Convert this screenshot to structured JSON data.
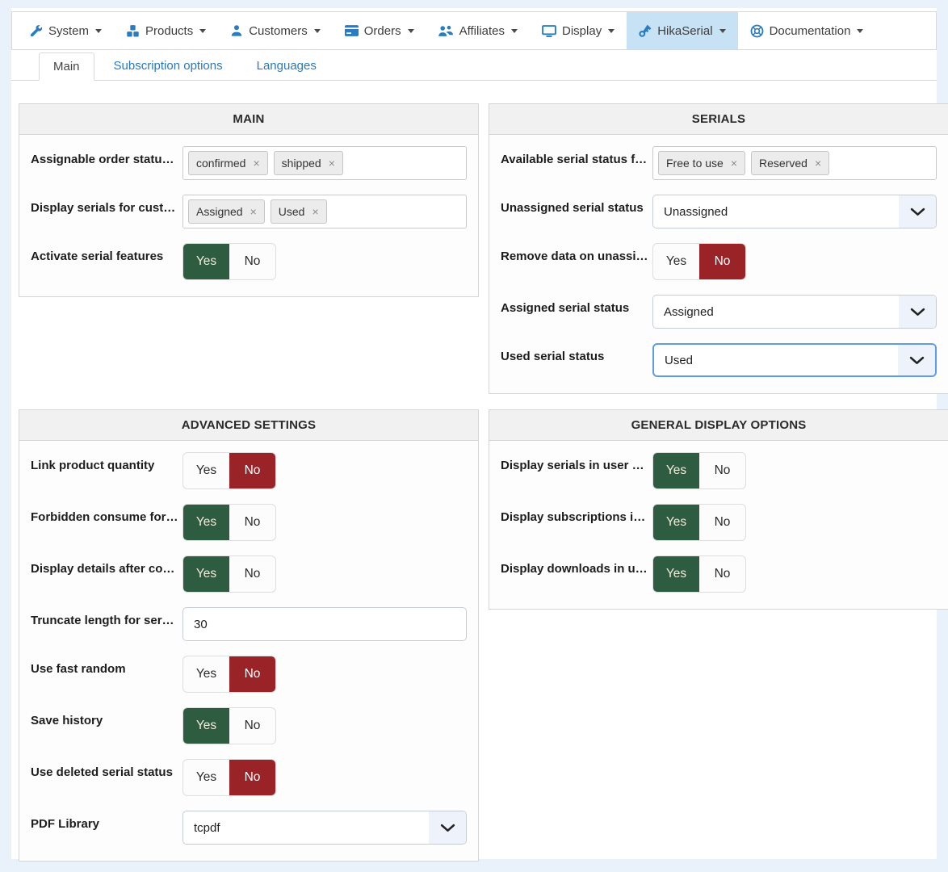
{
  "menu": {
    "items": [
      {
        "label": "System",
        "icon": "wrench-icon",
        "active": false
      },
      {
        "label": "Products",
        "icon": "cubes-icon",
        "active": false
      },
      {
        "label": "Customers",
        "icon": "user-icon",
        "active": false
      },
      {
        "label": "Orders",
        "icon": "card-icon",
        "active": false
      },
      {
        "label": "Affiliates",
        "icon": "users-icon",
        "active": false
      },
      {
        "label": "Display",
        "icon": "monitor-icon",
        "active": false
      },
      {
        "label": "HikaSerial",
        "icon": "key-icon",
        "active": true
      },
      {
        "label": "Documentation",
        "icon": "lifering-icon",
        "active": false
      }
    ]
  },
  "tabs": [
    {
      "label": "Main",
      "active": true
    },
    {
      "label": "Subscription options",
      "active": false
    },
    {
      "label": "Languages",
      "active": false
    }
  ],
  "panels": [
    {
      "title": "MAIN",
      "rows": [
        {
          "label": "Assignable order statu…",
          "type": "tags",
          "tags": [
            "confirmed",
            "shipped"
          ]
        },
        {
          "label": "Display serials for cust…",
          "type": "tags",
          "tags": [
            "Assigned",
            "Used"
          ]
        },
        {
          "label": "Activate serial features",
          "type": "toggle",
          "value": "Yes"
        }
      ]
    },
    {
      "title": "SERIALS",
      "rows": [
        {
          "label": "Available serial status f…",
          "type": "tags",
          "tags": [
            "Free to use",
            "Reserved"
          ]
        },
        {
          "label": "Unassigned serial status",
          "type": "select",
          "value": "Unassigned"
        },
        {
          "label": "Remove data on unassi…",
          "type": "toggle",
          "value": "No"
        },
        {
          "label": "Assigned serial status",
          "type": "select",
          "value": "Assigned"
        },
        {
          "label": "Used serial status",
          "type": "select",
          "value": "Used",
          "focused": true
        }
      ]
    },
    {
      "title": "ADVANCED SETTINGS",
      "rows": [
        {
          "label": "Link product quantity",
          "type": "toggle",
          "value": "No"
        },
        {
          "label": "Forbidden consume for…",
          "type": "toggle",
          "value": "Yes"
        },
        {
          "label": "Display details after co…",
          "type": "toggle",
          "value": "Yes"
        },
        {
          "label": "Truncate length for ser…",
          "type": "text",
          "value": "30"
        },
        {
          "label": "Use fast random",
          "type": "toggle",
          "value": "No"
        },
        {
          "label": "Save history",
          "type": "toggle",
          "value": "Yes"
        },
        {
          "label": "Use deleted serial status",
          "type": "toggle",
          "value": "No"
        },
        {
          "label": "PDF Library",
          "type": "select",
          "value": "tcpdf"
        }
      ]
    },
    {
      "title": "GENERAL DISPLAY OPTIONS",
      "rows": [
        {
          "label": "Display serials in user …",
          "type": "toggle",
          "value": "Yes"
        },
        {
          "label": "Display subscriptions i…",
          "type": "toggle",
          "value": "Yes"
        },
        {
          "label": "Display downloads in u…",
          "type": "toggle",
          "value": "Yes"
        }
      ]
    }
  ],
  "ui": {
    "yes": "Yes",
    "no": "No",
    "chip_close": "×"
  },
  "colors": {
    "accent_blue": "#2a7cc0",
    "link_blue": "#2a79c0",
    "selected_yes_green": "#2e5c41",
    "selected_no_red": "#9a2327",
    "active_menu_bg": "#c7e2f4",
    "page_bg": "#e9f1fb"
  }
}
